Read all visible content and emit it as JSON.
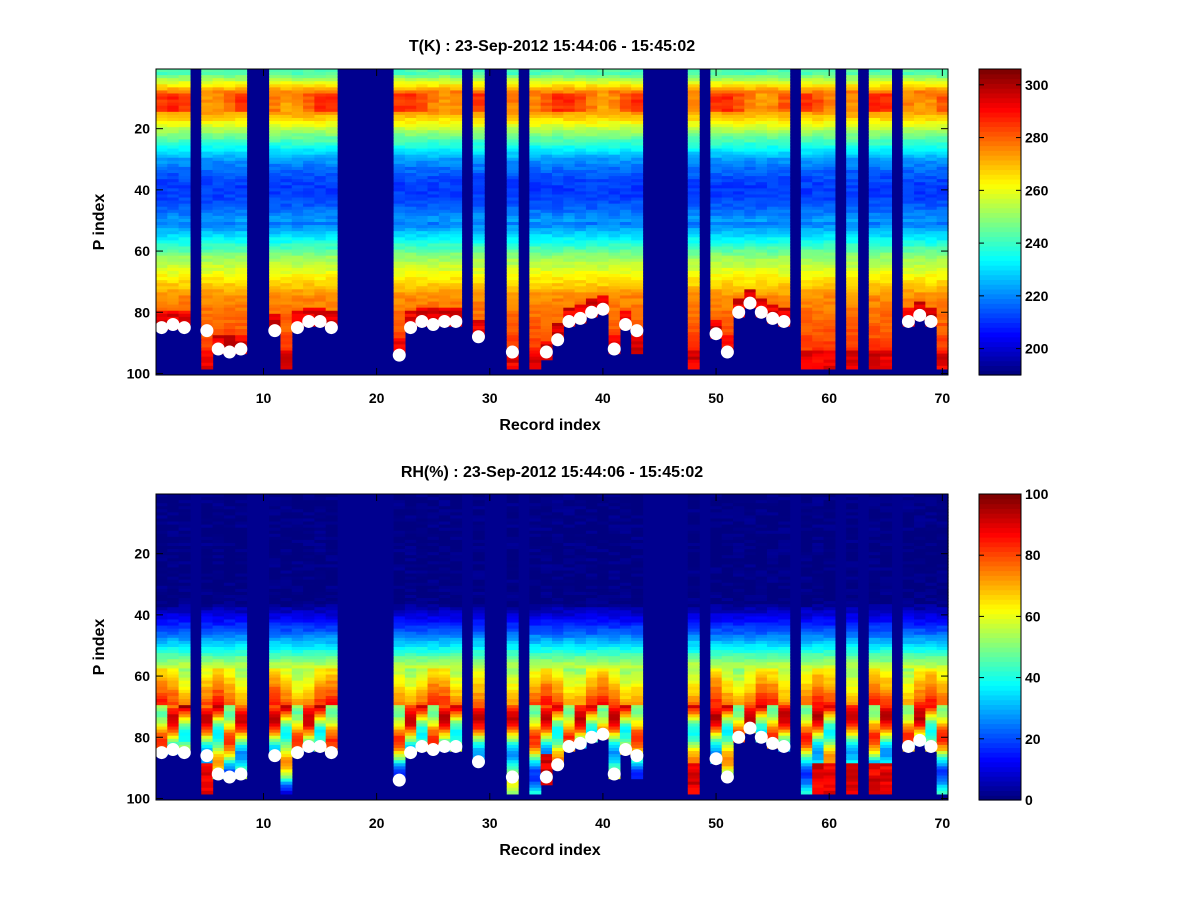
{
  "chart_data": [
    {
      "type": "heatmap",
      "title": "T(K) : 23-Sep-2012 15:44:06 - 15:45:02",
      "xlabel": "Record index",
      "ylabel": "P index",
      "xlim": [
        1,
        70
      ],
      "ylim": [
        1,
        100
      ],
      "y_reversed": true,
      "xticks": [
        "10",
        "20",
        "30",
        "40",
        "50",
        "60",
        "70"
      ],
      "yticks": [
        "20",
        "40",
        "60",
        "80",
        "100"
      ],
      "colorbar": {
        "min": 190,
        "max": 306,
        "ticks": [
          "200",
          "220",
          "240",
          "260",
          "280",
          "300"
        ],
        "colormap": "jet"
      },
      "missing_columns": [
        4,
        9,
        10,
        17,
        18,
        19,
        20,
        21,
        28,
        30,
        31,
        33,
        44,
        45,
        46,
        47,
        49,
        57,
        61,
        63,
        66
      ],
      "column_bottom_p": [
        85,
        85,
        85,
        0,
        98,
        93,
        93,
        93,
        0,
        0,
        86,
        98,
        85,
        84,
        84,
        85,
        0,
        0,
        0,
        0,
        0,
        94,
        85,
        84,
        84,
        84,
        84,
        0,
        88,
        0,
        0,
        98,
        0,
        98,
        95,
        89,
        84,
        83,
        81,
        80,
        93,
        85,
        93,
        0,
        0,
        0,
        0,
        98,
        0,
        88,
        93,
        81,
        78,
        81,
        83,
        84,
        0,
        98,
        98,
        98,
        0,
        98,
        0,
        98,
        98,
        0,
        84,
        82,
        84,
        98
      ],
      "series": [
        {
          "name": "",
          "marker": "white-circle",
          "x": [
            1,
            2,
            3,
            5,
            6,
            7,
            8,
            11,
            13,
            14,
            15,
            16,
            22,
            23,
            24,
            25,
            26,
            27,
            29,
            32,
            35,
            36,
            37,
            38,
            39,
            40,
            41,
            42,
            43,
            50,
            51,
            52,
            53,
            54,
            55,
            56,
            67,
            68,
            69
          ],
          "y": [
            85,
            84,
            85,
            86,
            92,
            93,
            92,
            86,
            85,
            83,
            83,
            85,
            94,
            85,
            83,
            84,
            83,
            83,
            88,
            93,
            93,
            89,
            83,
            82,
            80,
            79,
            92,
            84,
            86,
            87,
            93,
            80,
            77,
            80,
            82,
            83,
            83,
            81,
            83
          ]
        }
      ]
    },
    {
      "type": "heatmap",
      "title": "RH(%) : 23-Sep-2012 15:44:06 - 15:45:02",
      "xlabel": "Record index",
      "ylabel": "P index",
      "xlim": [
        1,
        70
      ],
      "ylim": [
        1,
        100
      ],
      "y_reversed": true,
      "xticks": [
        "10",
        "20",
        "30",
        "40",
        "50",
        "60",
        "70"
      ],
      "yticks": [
        "20",
        "40",
        "60",
        "80",
        "100"
      ],
      "colorbar": {
        "min": 0,
        "max": 100,
        "ticks": [
          "0",
          "20",
          "40",
          "60",
          "80",
          "100"
        ],
        "colormap": "jet"
      },
      "missing_columns": [
        4,
        9,
        10,
        17,
        18,
        19,
        20,
        21,
        28,
        30,
        31,
        33,
        44,
        45,
        46,
        47,
        49,
        57,
        61,
        63,
        66
      ],
      "series": [
        {
          "name": "",
          "marker": "white-circle",
          "x": [
            1,
            2,
            3,
            5,
            6,
            7,
            8,
            11,
            13,
            14,
            15,
            16,
            22,
            23,
            24,
            25,
            26,
            27,
            29,
            32,
            35,
            36,
            37,
            38,
            39,
            40,
            41,
            42,
            43,
            50,
            51,
            52,
            53,
            54,
            55,
            56,
            67,
            68,
            69
          ],
          "y": [
            85,
            84,
            85,
            86,
            92,
            93,
            92,
            86,
            85,
            83,
            83,
            85,
            94,
            85,
            83,
            84,
            83,
            83,
            88,
            93,
            93,
            89,
            83,
            82,
            80,
            79,
            92,
            84,
            86,
            87,
            93,
            80,
            77,
            80,
            82,
            83,
            83,
            81,
            83
          ]
        }
      ]
    }
  ],
  "colors": {
    "background": "#ffffff",
    "missing": "#00008f",
    "marker": "#ffffff"
  }
}
